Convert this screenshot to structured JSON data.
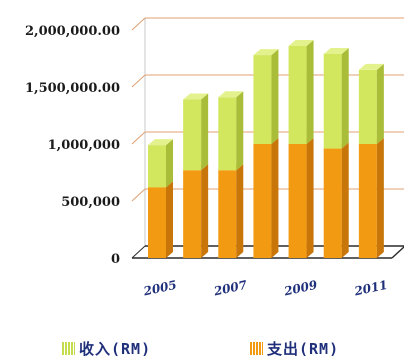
{
  "chart_data": {
    "type": "bar",
    "stacked": true,
    "categories": [
      "2005",
      "2006",
      "2007",
      "2008",
      "2009",
      "2010",
      "2011"
    ],
    "x_tick_labels": [
      "2005",
      "2007",
      "2009",
      "2011"
    ],
    "series": [
      {
        "name": "支出(RM)",
        "color": "#f29b12",
        "values": [
          620000,
          770000,
          770000,
          1000000,
          1000000,
          960000,
          1000000
        ]
      },
      {
        "name": "收入(RM)",
        "color": "#cfe45a",
        "values": [
          370000,
          620000,
          640000,
          780000,
          860000,
          830000,
          650000
        ]
      }
    ],
    "y_tick_labels": [
      "0",
      "500,000",
      "1,000,000",
      "1,500,000.00",
      "2,000,000.00"
    ],
    "ylim": [
      0,
      2000000
    ],
    "grid": true,
    "legend_position": "bottom",
    "title": "",
    "xlabel": "",
    "ylabel": ""
  },
  "legend": {
    "income_label": "收入(RM)",
    "expense_label": "支出(RM)"
  },
  "colors": {
    "gridline": "#e0a070",
    "backwall": "#c8c8c8"
  }
}
